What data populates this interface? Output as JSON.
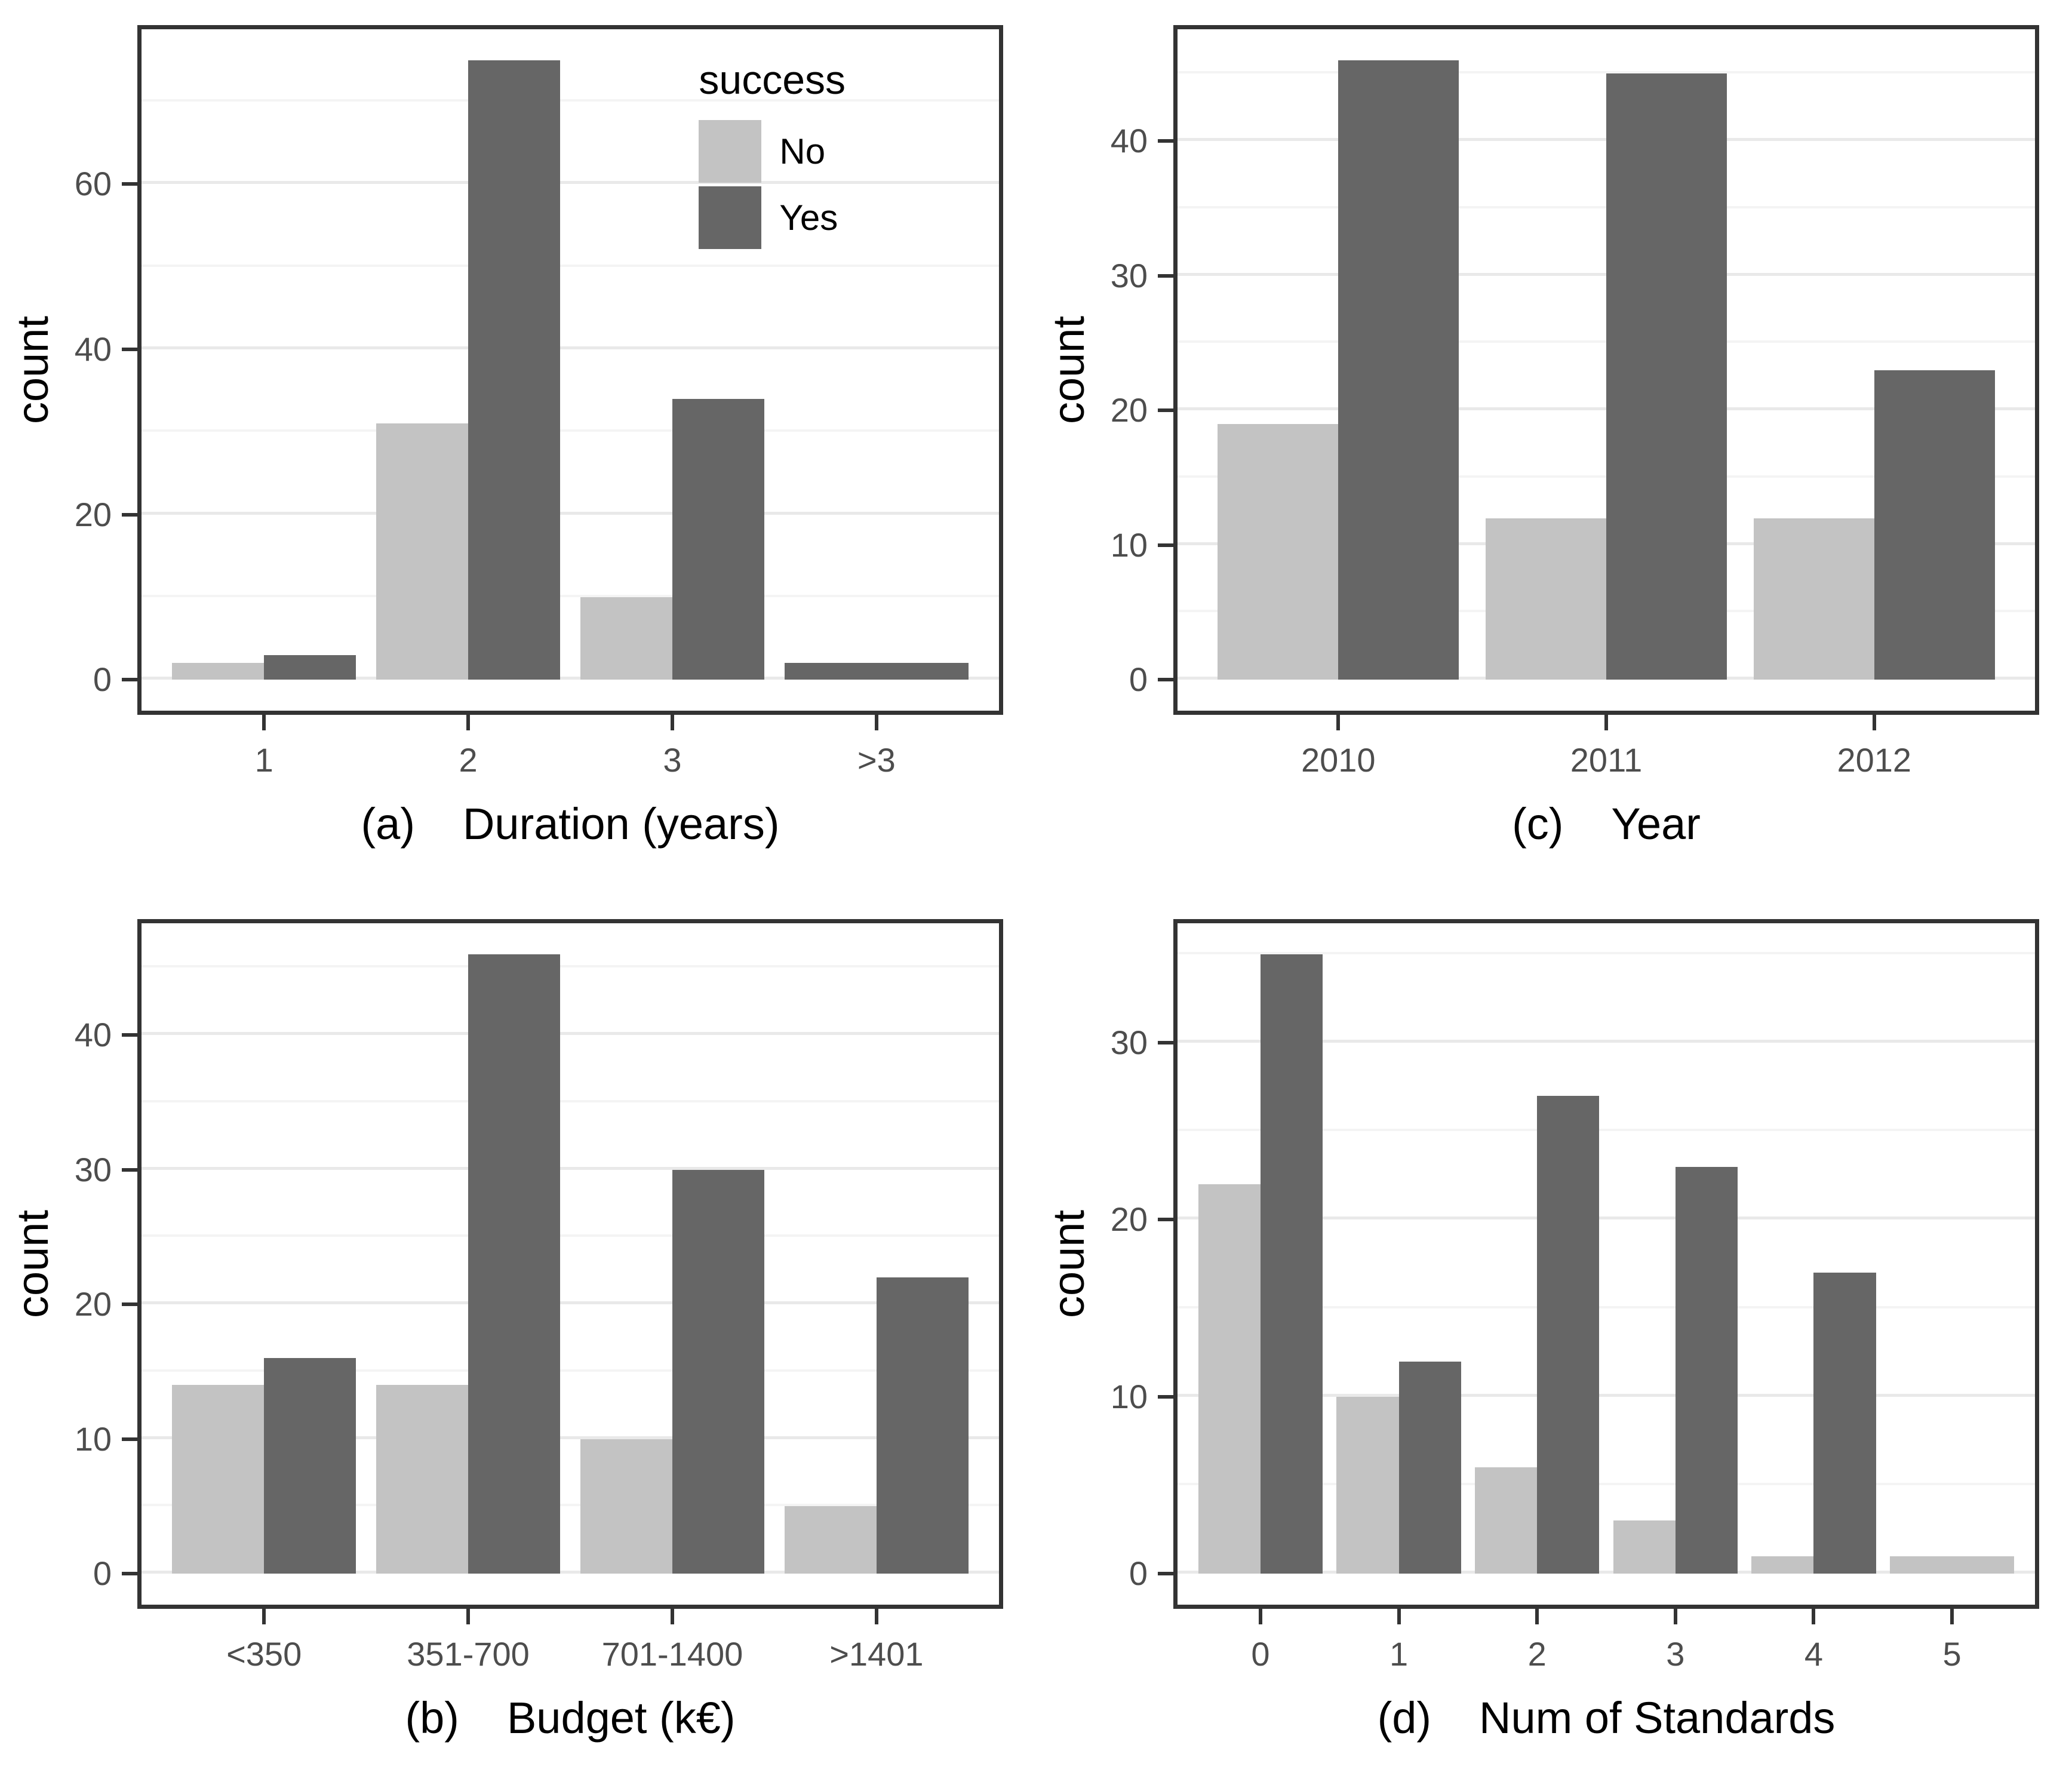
{
  "page": {
    "background": "#ffffff"
  },
  "legend": {
    "title": "success",
    "items": [
      {
        "label": "No",
        "color": "#c3c3c3"
      },
      {
        "label": "Yes",
        "color": "#666666"
      }
    ]
  },
  "chart_data": [
    {
      "id": "a",
      "type": "bar",
      "grouped": true,
      "legend_position": "inside-top-right",
      "caption_prefix": "(a)",
      "caption": "Duration (years)",
      "ylabel": "count",
      "categories": [
        "1",
        "2",
        "3",
        ">3"
      ],
      "series": [
        {
          "name": "No",
          "values": [
            2,
            31,
            10,
            null
          ]
        },
        {
          "name": "Yes",
          "values": [
            3,
            75,
            34,
            2
          ]
        }
      ],
      "y_major": [
        0,
        20,
        40,
        60
      ],
      "y_minor": [
        10,
        30,
        50,
        70
      ],
      "ymax": 75,
      "grid": true
    },
    {
      "id": "c",
      "type": "bar",
      "grouped": true,
      "caption_prefix": "(c)",
      "caption": "Year",
      "ylabel": "count",
      "categories": [
        "2010",
        "2011",
        "2012"
      ],
      "series": [
        {
          "name": "No",
          "values": [
            19,
            12,
            12
          ]
        },
        {
          "name": "Yes",
          "values": [
            46,
            45,
            23
          ]
        }
      ],
      "y_major": [
        0,
        10,
        20,
        30,
        40
      ],
      "y_minor": [
        5,
        15,
        25,
        35,
        45
      ],
      "ymax": 46,
      "grid": true
    },
    {
      "id": "b",
      "type": "bar",
      "grouped": true,
      "caption_prefix": "(b)",
      "caption": "Budget (k€)",
      "ylabel": "count",
      "categories": [
        "<350",
        "351-700",
        "701-1400",
        ">1401"
      ],
      "series": [
        {
          "name": "No",
          "values": [
            14,
            14,
            10,
            5
          ]
        },
        {
          "name": "Yes",
          "values": [
            16,
            46,
            30,
            22
          ]
        }
      ],
      "y_major": [
        0,
        10,
        20,
        30,
        40
      ],
      "y_minor": [
        5,
        15,
        25,
        35,
        45
      ],
      "ymax": 46,
      "grid": true
    },
    {
      "id": "d",
      "type": "bar",
      "grouped": true,
      "caption_prefix": "(d)",
      "caption": "Num of Standards",
      "ylabel": "count",
      "categories": [
        "0",
        "1",
        "2",
        "3",
        "4",
        "5"
      ],
      "series": [
        {
          "name": "No",
          "values": [
            22,
            10,
            6,
            3,
            1,
            1
          ]
        },
        {
          "name": "Yes",
          "values": [
            35,
            12,
            27,
            23,
            17,
            null
          ]
        }
      ],
      "y_major": [
        0,
        10,
        20,
        30
      ],
      "y_minor": [
        5,
        15,
        25,
        35
      ],
      "ymax": 35,
      "grid": true
    }
  ]
}
